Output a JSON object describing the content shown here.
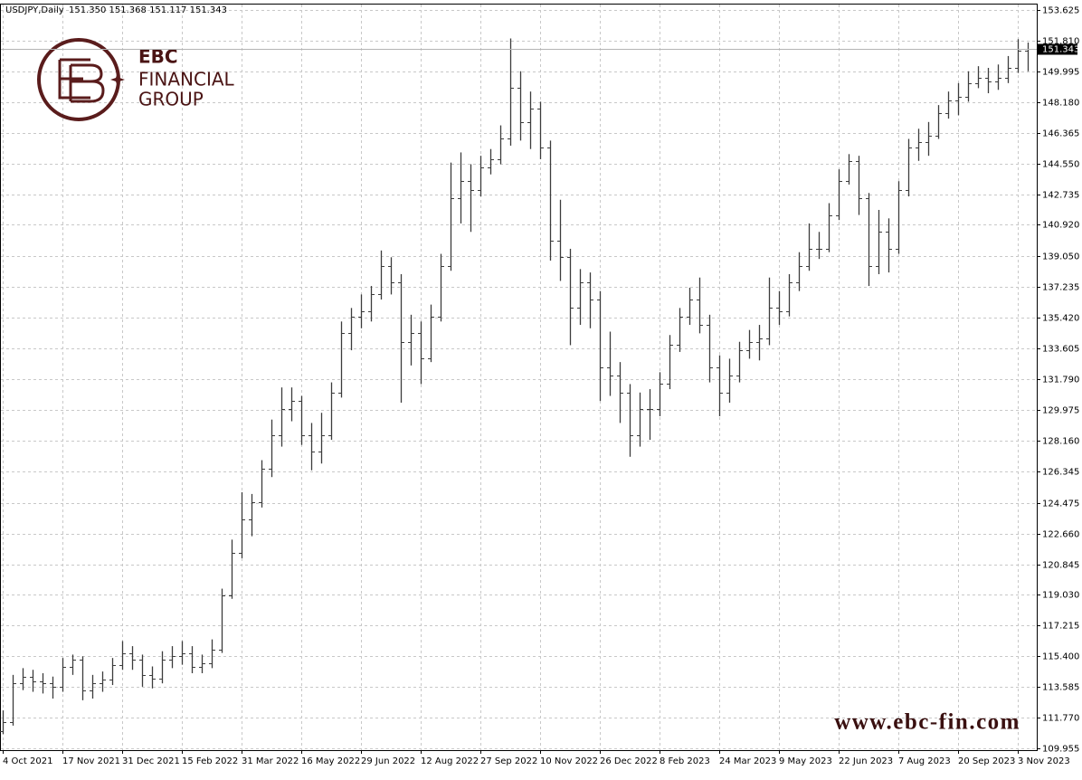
{
  "header": {
    "symbol": "USDJPY,Daily",
    "ohlc": "151.350 151.368 151.117 151.343"
  },
  "logo": {
    "name": "EBC",
    "line2": "FINANCIAL",
    "line3": "GROUP"
  },
  "watermark": "www.ebc-fin.com",
  "chart_data": {
    "type": "ohlc",
    "color": "#3c3c3c",
    "grid": true,
    "categories": [
      "4 Oct 2021",
      null,
      null,
      null,
      null,
      null,
      "17 Nov 2021",
      null,
      null,
      null,
      null,
      null,
      "31 Dec 2021",
      null,
      null,
      null,
      null,
      null,
      "15 Feb 2022",
      null,
      null,
      null,
      null,
      null,
      "31 Mar 2022",
      null,
      null,
      null,
      null,
      null,
      "16 May 2022",
      null,
      null,
      null,
      null,
      null,
      "29 Jun 2022",
      null,
      null,
      null,
      null,
      null,
      "12 Aug 2022",
      null,
      null,
      null,
      null,
      null,
      "27 Sep 2022",
      null,
      null,
      null,
      null,
      null,
      "10 Nov 2022",
      null,
      null,
      null,
      null,
      null,
      "26 Dec 2022",
      null,
      null,
      null,
      null,
      null,
      "8 Feb 2023",
      null,
      null,
      null,
      null,
      null,
      "24 Mar 2023",
      null,
      null,
      null,
      null,
      null,
      "9 May 2023",
      null,
      null,
      null,
      null,
      null,
      "22 Jun 2023",
      null,
      null,
      null,
      null,
      null,
      "7 Aug 2023",
      null,
      null,
      null,
      null,
      null,
      "20 Sep 2023",
      null,
      null,
      null,
      null,
      null,
      "3 Nov 2023",
      null
    ],
    "open": [
      111.0,
      111.5,
      113.8,
      114.2,
      113.9,
      113.8,
      113.6,
      114.8,
      115.2,
      113.4,
      113.8,
      114.0,
      114.9,
      115.6,
      115.2,
      114.3,
      114.1,
      115.2,
      115.4,
      115.6,
      114.8,
      115.0,
      115.8,
      119.0,
      121.5,
      123.5,
      124.5,
      126.5,
      128.5,
      130.0,
      130.5,
      128.5,
      127.5,
      128.5,
      131.0,
      134.5,
      135.5,
      135.8,
      136.8,
      138.5,
      137.5,
      134.0,
      134.5,
      133.0,
      135.5,
      138.5,
      142.5,
      143.5,
      143.0,
      144.3,
      144.8,
      146.0,
      149.0,
      147.0,
      147.8,
      145.5,
      140.0,
      139.0,
      136.0,
      137.5,
      136.5,
      132.5,
      132.0,
      131.0,
      128.5,
      130.0,
      130.0,
      131.5,
      133.8,
      135.5,
      136.5,
      135.0,
      132.5,
      131.0,
      132.0,
      133.5,
      134.0,
      134.2,
      136.0,
      135.8,
      137.5,
      138.5,
      139.5,
      139.5,
      141.5,
      143.5,
      144.7,
      142.5,
      138.5,
      140.5,
      139.5,
      143.0,
      145.5,
      145.8,
      146.2,
      147.5,
      148.3,
      148.5,
      149.3,
      149.6,
      149.4,
      149.6,
      150.2,
      151.2
    ],
    "high": [
      112.2,
      114.3,
      114.7,
      114.6,
      114.4,
      114.2,
      115.3,
      115.5,
      115.4,
      114.3,
      114.5,
      115.3,
      116.3,
      116.0,
      115.5,
      114.8,
      115.7,
      116.0,
      116.3,
      116.0,
      115.5,
      116.4,
      119.4,
      122.3,
      125.1,
      125.0,
      127.0,
      129.4,
      131.3,
      131.3,
      130.8,
      129.2,
      129.8,
      131.6,
      135.2,
      136.0,
      136.8,
      137.3,
      139.4,
      139.0,
      138.0,
      135.6,
      135.2,
      136.2,
      139.2,
      144.6,
      145.2,
      144.5,
      145.0,
      145.4,
      146.8,
      151.94,
      150.0,
      148.8,
      148.2,
      145.9,
      142.4,
      139.5,
      138.3,
      138.1,
      137.0,
      134.6,
      132.8,
      131.5,
      131.0,
      131.2,
      132.2,
      134.4,
      136.0,
      137.2,
      137.8,
      135.6,
      133.2,
      133.0,
      134.0,
      134.7,
      135.0,
      137.8,
      137.0,
      138.0,
      139.3,
      141.0,
      140.5,
      142.2,
      144.2,
      145.1,
      145.0,
      142.8,
      141.8,
      141.3,
      143.5,
      146.0,
      146.6,
      147.0,
      148.0,
      148.8,
      149.3,
      150.0,
      150.3,
      150.2,
      150.4,
      150.9,
      151.9,
      151.7
    ],
    "low": [
      110.8,
      111.3,
      113.4,
      113.3,
      113.2,
      112.9,
      113.3,
      114.3,
      112.8,
      112.9,
      113.3,
      113.7,
      114.6,
      114.6,
      113.6,
      113.5,
      113.8,
      114.7,
      114.9,
      114.4,
      114.4,
      114.7,
      115.6,
      118.8,
      121.2,
      122.5,
      124.2,
      126.0,
      127.8,
      129.3,
      127.9,
      126.4,
      126.8,
      128.2,
      130.7,
      133.5,
      134.8,
      135.2,
      136.5,
      136.8,
      130.4,
      132.6,
      131.5,
      132.8,
      135.2,
      138.2,
      141.0,
      140.5,
      142.6,
      143.9,
      144.5,
      145.6,
      145.9,
      145.4,
      144.8,
      138.8,
      137.6,
      133.8,
      135.0,
      134.8,
      130.5,
      130.8,
      129.2,
      127.2,
      127.8,
      128.2,
      129.6,
      131.2,
      133.4,
      135.0,
      134.5,
      131.6,
      129.6,
      130.4,
      131.6,
      133.0,
      132.9,
      133.8,
      135.0,
      135.5,
      137.0,
      138.2,
      138.9,
      139.3,
      141.2,
      143.3,
      141.5,
      137.3,
      138.0,
      138.1,
      139.2,
      142.6,
      144.7,
      145.0,
      146.0,
      147.2,
      147.4,
      148.2,
      149.0,
      148.7,
      148.9,
      149.3,
      149.9,
      150.0
    ],
    "close": [
      111.5,
      113.8,
      114.2,
      113.9,
      113.8,
      113.6,
      114.8,
      115.2,
      113.4,
      113.8,
      114.0,
      114.9,
      115.6,
      115.2,
      114.3,
      114.1,
      115.2,
      115.4,
      115.6,
      114.8,
      115.0,
      115.8,
      119.0,
      121.5,
      123.5,
      124.5,
      126.5,
      128.5,
      130.0,
      130.5,
      128.5,
      127.5,
      128.5,
      131.0,
      134.5,
      135.5,
      135.8,
      136.8,
      138.5,
      137.5,
      134.0,
      134.5,
      133.0,
      135.5,
      138.5,
      142.5,
      143.5,
      143.0,
      144.3,
      144.8,
      146.0,
      149.0,
      147.0,
      147.8,
      145.5,
      140.0,
      139.0,
      136.0,
      137.5,
      136.5,
      132.5,
      132.0,
      131.0,
      128.5,
      130.0,
      130.0,
      131.5,
      133.8,
      135.5,
      136.5,
      135.0,
      132.5,
      131.0,
      132.0,
      133.5,
      134.0,
      134.2,
      136.0,
      135.8,
      137.5,
      138.5,
      139.5,
      139.5,
      141.5,
      143.5,
      144.7,
      142.5,
      138.5,
      140.5,
      139.5,
      143.0,
      145.5,
      145.8,
      146.2,
      147.5,
      148.3,
      148.5,
      149.3,
      149.6,
      149.4,
      149.6,
      150.2,
      151.2,
      151.343
    ],
    "ylim": [
      109.85,
      154.0
    ],
    "yticks": [
      109.955,
      {
        "value": 111.77,
        "label": "111.770"
      },
      113.585,
      {
        "value": 115.4,
        "label": "115.400"
      },
      117.215,
      {
        "value": 119.03,
        "label": "119.030"
      },
      120.845,
      {
        "value": 122.66,
        "label": "122.660"
      },
      124.475,
      126.345,
      {
        "value": 128.16,
        "label": "128.160"
      },
      129.975,
      {
        "value": 131.79,
        "label": "131.790"
      },
      133.605,
      {
        "value": 135.42,
        "label": "135.420"
      },
      137.235,
      {
        "value": 139.05,
        "label": "139.050"
      },
      {
        "value": 140.92,
        "label": "140.920"
      },
      142.735,
      {
        "value": 144.55,
        "label": "144.550"
      },
      146.365,
      {
        "value": 148.18,
        "label": "148.180"
      },
      149.995,
      {
        "value": 151.81,
        "label": "151.810"
      },
      153.625
    ]
  }
}
